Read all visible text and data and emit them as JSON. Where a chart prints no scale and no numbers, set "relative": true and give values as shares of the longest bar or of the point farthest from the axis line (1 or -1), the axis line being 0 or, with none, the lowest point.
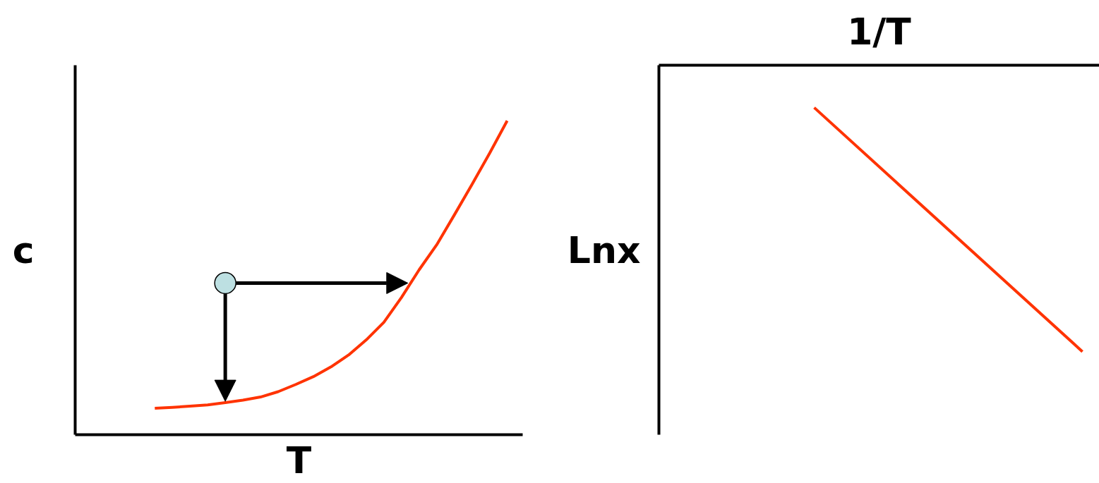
{
  "chart_data": [
    {
      "type": "line",
      "xlabel": "T",
      "ylabel": "c",
      "relative": true,
      "categories": [
        null,
        null,
        null,
        null,
        null,
        null,
        null,
        null,
        null,
        null,
        null,
        null,
        null,
        null,
        null,
        null,
        null,
        null,
        null,
        null,
        null
      ],
      "series": [
        {
          "type": "line",
          "color": "#ff3300",
          "values": [
            0.084,
            0.087,
            0.091,
            0.095,
            0.102,
            0.11,
            0.12,
            0.137,
            0.16,
            0.185,
            0.216,
            0.254,
            0.302,
            0.358,
            0.437,
            0.525,
            0.605,
            0.7,
            0.797,
            0.896,
            1
          ]
        },
        {
          "color": "#bde0e2",
          "marker": "circle",
          "values": [
            null,
            null,
            null,
            null,
            0.483,
            null,
            null,
            null,
            null,
            null,
            null,
            null,
            null,
            null,
            null,
            null,
            null,
            null,
            null,
            null,
            null
          ]
        }
      ]
    },
    {
      "type": "line",
      "x2label": "1/T",
      "ylabel": "Lnx",
      "relative": true,
      "categories": [
        null,
        null
      ],
      "series": [
        {
          "color": "#ff3300",
          "values": [
            -0.148,
            -1
          ]
        }
      ]
    }
  ]
}
